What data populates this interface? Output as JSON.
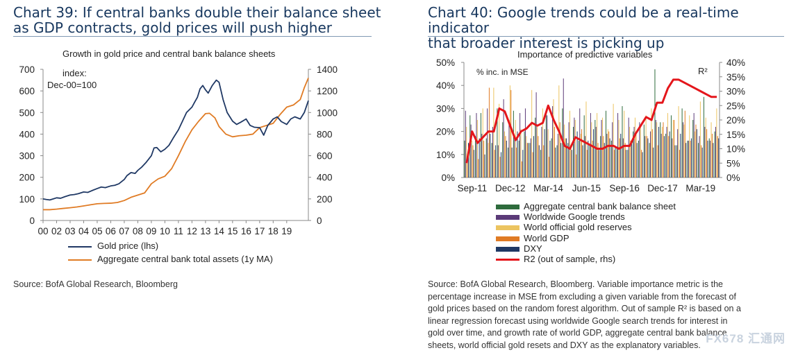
{
  "left": {
    "title_line1": "Chart 39: If central banks double their balance sheet",
    "title_line2": "as GDP contracts, gold prices will push higher",
    "subtitle": "Growth in gold price and central bank balance sheets",
    "index_note_line1": "index:",
    "index_note_line2": "Dec-00=100",
    "source": "Source: BofA Global Research, Bloomberg"
  },
  "right": {
    "title_line1": "Chart 40: Google trends could be a real-time indicator",
    "title_line2": "that broader interest is picking up",
    "subtitle": "Importance of predictive variables",
    "unit_note": "% inc. in MSE",
    "r2_label": "R²",
    "source_lines": [
      "Source: BofA Global Research, Bloomberg. Variable importance metric is the",
      "percentage increase in MSE from excluding a given variable from the forecast of",
      "gold prices based on the random forest algorithm. Out of sample R² is based on a",
      "linear regression forecast using worldwide Google search trends for interest in",
      "gold over time, and growth rate of world GDP, aggregate central bank balance",
      "sheets, world official gold resets and DXY as the explanatory variables."
    ]
  },
  "watermark": "FX678 汇通网",
  "chart_data": [
    {
      "type": "line",
      "title": "Growth in gold price and central bank balance sheets",
      "x_tick_labels": [
        "00",
        "02",
        "03",
        "04",
        "05",
        "06",
        "07",
        "08",
        "09",
        "10",
        "11",
        "12",
        "13",
        "14",
        "15",
        "16",
        "17",
        "18",
        "19"
      ],
      "x_range": [
        0,
        19.6
      ],
      "y_left_ticks": [
        "0",
        "100",
        "200",
        "300",
        "400",
        "500",
        "600",
        "700"
      ],
      "y_right_ticks": [
        "0",
        "200",
        "400",
        "600",
        "800",
        "1000",
        "1200",
        "1400"
      ],
      "ylim_left": [
        0,
        700
      ],
      "ylim_right": [
        0,
        1400
      ],
      "colors": {
        "gold": "#1f3864",
        "cb": "#e07b24"
      },
      "series": [
        {
          "name": "Gold price (lhs)",
          "axis": "left",
          "x": [
            0,
            0.25,
            0.5,
            0.75,
            1,
            1.3,
            1.6,
            2,
            2.3,
            2.6,
            3,
            3.3,
            3.6,
            4,
            4.3,
            4.6,
            5,
            5.3,
            5.6,
            6,
            6.2,
            6.5,
            6.8,
            7,
            7.3,
            7.6,
            8,
            8.2,
            8.4,
            8.7,
            9,
            9.3,
            9.6,
            10,
            10.3,
            10.6,
            11,
            11.2,
            11.4,
            11.6,
            11.8,
            12,
            12.2,
            12.5,
            12.8,
            13,
            13.3,
            13.6,
            14,
            14.3,
            14.6,
            15,
            15.3,
            15.6,
            16,
            16.3,
            16.6,
            17,
            17.3,
            17.6,
            18,
            18.3,
            18.6,
            19,
            19.3,
            19.6
          ],
          "values": [
            100,
            97,
            95,
            100,
            105,
            103,
            110,
            118,
            120,
            124,
            132,
            130,
            138,
            148,
            155,
            152,
            160,
            163,
            170,
            190,
            208,
            222,
            218,
            232,
            248,
            268,
            300,
            336,
            338,
            318,
            330,
            348,
            380,
            420,
            460,
            500,
            525,
            548,
            570,
            610,
            625,
            605,
            590,
            625,
            650,
            640,
            560,
            500,
            460,
            445,
            455,
            470,
            440,
            432,
            430,
            395,
            440,
            470,
            480,
            458,
            445,
            470,
            480,
            470,
            500,
            555
          ]
        },
        {
          "name": "Aggregate central bank total assets (1y MA)",
          "axis": "right",
          "x": [
            0,
            0.5,
            1,
            1.5,
            2,
            2.5,
            3,
            3.5,
            4,
            4.5,
            5,
            5.5,
            6,
            6.5,
            7,
            7.5,
            8,
            8.5,
            9,
            9.5,
            10,
            10.5,
            11,
            11.5,
            12,
            12.3,
            12.7,
            13,
            13.5,
            14,
            14.5,
            15,
            15.5,
            16,
            16.5,
            17,
            17.5,
            18,
            18.5,
            19,
            19.3,
            19.6
          ],
          "values": [
            100,
            100,
            105,
            112,
            118,
            125,
            135,
            145,
            155,
            158,
            160,
            167,
            185,
            215,
            235,
            255,
            340,
            385,
            410,
            480,
            600,
            730,
            840,
            920,
            990,
            993,
            950,
            870,
            800,
            775,
            785,
            790,
            800,
            860,
            880,
            900,
            980,
            1050,
            1070,
            1120,
            1230,
            1320
          ]
        }
      ]
    },
    {
      "type": "bar",
      "title": "Importance of predictive variables",
      "ylabel": "% inc. in MSE",
      "x_tick_labels": [
        "Sep-11",
        "Dec-12",
        "Mar-14",
        "Jun-15",
        "Sep-16",
        "Dec-17",
        "Mar-19"
      ],
      "y_left_ticks": [
        "0%",
        "10%",
        "20%",
        "30%",
        "40%",
        "50%"
      ],
      "y_right_ticks": [
        "0%",
        "5%",
        "10%",
        "15%",
        "20%",
        "25%",
        "30%",
        "35%",
        "40%"
      ],
      "ylim_left": [
        0,
        50
      ],
      "ylim_right": [
        0,
        40
      ],
      "series": [
        {
          "name": "Aggregate central bank balance sheet",
          "color": "#2e6b3c",
          "values": [
            16,
            27,
            18,
            28,
            17,
            15,
            30,
            24,
            13,
            29,
            16,
            20,
            15,
            26,
            12,
            28,
            17,
            14,
            30,
            15,
            22,
            16,
            27,
            14,
            25,
            18,
            29,
            16,
            13,
            31,
            12,
            20,
            16,
            23,
            15,
            47,
            24,
            19,
            27,
            14,
            30,
            16,
            25,
            15,
            35,
            17,
            20
          ]
        },
        {
          "name": "Worldwide Google trends",
          "color": "#5b3a78",
          "values": [
            29,
            23,
            28,
            19,
            30,
            22,
            14,
            34,
            25,
            18,
            28,
            30,
            17,
            37,
            22,
            27,
            31,
            19,
            43,
            24,
            26,
            30,
            18,
            28,
            22,
            25,
            19,
            24,
            28,
            17,
            26,
            22,
            24,
            18,
            20,
            25,
            19,
            22,
            17,
            21,
            24,
            16,
            28,
            18,
            22,
            16,
            22
          ]
        },
        {
          "name": "World official gold reserves",
          "color": "#ecc460",
          "values": [
            22,
            16,
            25,
            30,
            15,
            39,
            32,
            20,
            40,
            25,
            21,
            18,
            38,
            22,
            30,
            21,
            34,
            40,
            23,
            29,
            25,
            19,
            33,
            24,
            28,
            26,
            21,
            32,
            25,
            29,
            22,
            26,
            23,
            27,
            30,
            24,
            22,
            28,
            25,
            31,
            23,
            27,
            20,
            33,
            26,
            24,
            30
          ]
        },
        {
          "name": "World GDP",
          "color": "#e07b24",
          "values": [
            10,
            14,
            8,
            16,
            39,
            12,
            9,
            18,
            38,
            13,
            7,
            15,
            11,
            18,
            14,
            9,
            22,
            24,
            17,
            13,
            10,
            21,
            12,
            16,
            15,
            18,
            20,
            12,
            17,
            15,
            16,
            20,
            12,
            18,
            21,
            14,
            24,
            18,
            25,
            12,
            29,
            16,
            23,
            14,
            21,
            19,
            18
          ]
        },
        {
          "name": "DXY",
          "color": "#1f3864",
          "values": [
            15,
            12,
            17,
            10,
            19,
            14,
            11,
            16,
            13,
            20,
            12,
            15,
            18,
            14,
            21,
            16,
            13,
            15,
            17,
            12,
            20,
            14,
            16,
            21,
            12,
            15,
            17,
            13,
            19,
            12,
            16,
            15,
            11,
            17,
            13,
            22,
            18,
            20,
            14,
            19,
            15,
            17,
            21,
            13,
            16,
            15,
            17
          ]
        },
        {
          "name": "R2 (out of sample, rhs)",
          "color": "#e4161b",
          "axis": "right",
          "type": "line",
          "values": [
            5,
            16,
            12,
            14,
            16,
            16,
            24,
            23,
            18,
            13,
            16,
            17,
            19,
            18,
            19,
            25,
            20,
            16,
            11,
            10,
            14,
            13,
            12,
            11,
            10,
            10,
            11,
            11,
            10,
            11,
            11,
            15,
            18,
            21,
            20,
            26,
            26,
            31,
            34,
            34,
            33,
            32,
            31,
            30,
            29,
            28,
            28
          ]
        }
      ]
    }
  ],
  "legend_left": [
    "Gold price (lhs)",
    "Aggregate central bank total assets (1y MA)"
  ],
  "legend_right": [
    "Aggregate central bank balance sheet",
    "Worldwide Google trends",
    "World official gold reserves",
    "World GDP",
    "DXY",
    "R2 (out of sample, rhs)"
  ]
}
